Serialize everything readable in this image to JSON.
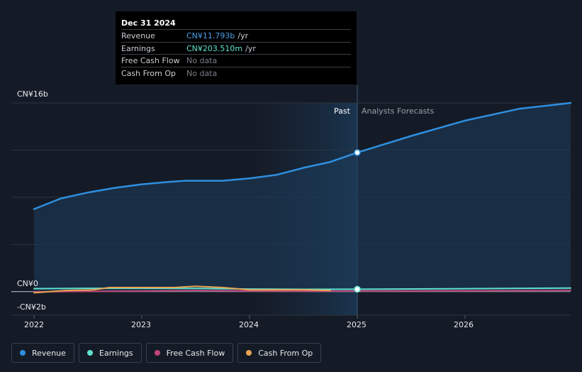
{
  "tooltip": {
    "date": "Dec 31 2024",
    "rows": [
      {
        "label": "Revenue",
        "value": "CN¥11.793b",
        "unit": "/yr"
      },
      {
        "label": "Earnings",
        "value": "CN¥203.510m",
        "unit": "/yr"
      },
      {
        "label": "Free Cash Flow",
        "value": "No data",
        "unit": ""
      },
      {
        "label": "Cash From Op",
        "value": "No data",
        "unit": ""
      }
    ]
  },
  "sections": {
    "past": "Past",
    "forecast": "Analysts Forecasts"
  },
  "colors": {
    "revenue": "#2f8fe0",
    "earnings": "#5fe3cf",
    "fcf": "#c0457a",
    "cfo": "#e8a552",
    "background": "#151b26"
  },
  "chart_data": {
    "type": "line",
    "ylim": [
      -2,
      16
    ],
    "xlim": [
      2022,
      2026.98
    ],
    "y_ticks": [
      {
        "label": "CN¥16b",
        "value": 16
      },
      {
        "label": "CN¥0",
        "value": 0
      },
      {
        "label": "-CN¥2b",
        "value": -2
      }
    ],
    "x_ticks": [
      {
        "label": "2022",
        "value": 2022
      },
      {
        "label": "2023",
        "value": 2023
      },
      {
        "label": "2024",
        "value": 2024
      },
      {
        "label": "2025",
        "value": 2025
      },
      {
        "label": "2026",
        "value": 2026
      }
    ],
    "series": [
      {
        "name": "Revenue",
        "x": [
          2022.0,
          2022.25,
          2022.5,
          2022.75,
          2023.0,
          2023.25,
          2023.4,
          2023.6,
          2023.75,
          2024.0,
          2024.25,
          2024.5,
          2024.75,
          2025.0
        ],
        "y": [
          7.0,
          7.9,
          8.4,
          8.8,
          9.1,
          9.3,
          9.4,
          9.4,
          9.4,
          9.6,
          9.9,
          10.5,
          11.0,
          11.793
        ]
      },
      {
        "name": "Revenue Forecast",
        "x": [
          2025.0,
          2025.5,
          2026.0,
          2026.5,
          2026.98
        ],
        "y": [
          11.793,
          13.2,
          14.5,
          15.5,
          16.0
        ]
      },
      {
        "name": "Earnings",
        "x": [
          2022.0,
          2022.5,
          2023.0,
          2023.5,
          2024.0,
          2024.5,
          2025.0,
          2026.0,
          2026.98
        ],
        "y": [
          0.25,
          0.28,
          0.28,
          0.27,
          0.22,
          0.2,
          0.2035,
          0.25,
          0.3
        ]
      },
      {
        "name": "Free Cash Flow",
        "x": [
          2022.0,
          2022.5,
          2023.0,
          2023.5,
          2024.0,
          2024.5,
          2025.0,
          2026.0,
          2026.98
        ],
        "y": [
          -0.02,
          0.02,
          0.05,
          0.1,
          0.05,
          0.03,
          0.05,
          0.07,
          0.1
        ]
      },
      {
        "name": "Cash From Op",
        "x": [
          2022.0,
          2022.3,
          2022.55,
          2022.7,
          2023.0,
          2023.3,
          2023.5,
          2023.75,
          2024.0,
          2024.5,
          2024.75
        ],
        "y": [
          -0.1,
          0.1,
          0.15,
          0.35,
          0.35,
          0.35,
          0.45,
          0.35,
          0.15,
          0.15,
          0.1
        ]
      }
    ]
  },
  "legend": [
    {
      "label": "Revenue",
      "color": "#2f8fe0"
    },
    {
      "label": "Earnings",
      "color": "#5fe3cf"
    },
    {
      "label": "Free Cash Flow",
      "color": "#c0457a"
    },
    {
      "label": "Cash From Op",
      "color": "#e8a552"
    }
  ]
}
